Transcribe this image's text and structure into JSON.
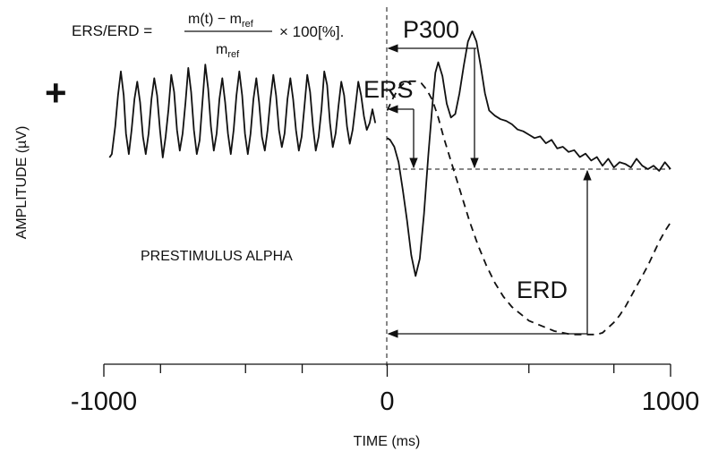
{
  "chart_data": {
    "type": "line",
    "xlabel": "TIME (ms)",
    "ylabel": "AMPLITUDE (µV)",
    "xlim": [
      -1000,
      1000
    ],
    "x_ticks": [
      "-1000",
      "0",
      "1000"
    ],
    "x_minor_ticks": [
      -800,
      -500,
      -300,
      500,
      800
    ],
    "formula": {
      "lhs": "ERS/ERD =",
      "num_main": "m(t) − m",
      "num_sub": "ref",
      "den_main": "m",
      "den_sub": "ref",
      "tail": "× 100[%]."
    },
    "plus_sign": "+",
    "annotations": {
      "p300": "P300",
      "ers": "ERS",
      "erd": "ERD",
      "alpha": "PRESTIMULUS ALPHA"
    },
    "series": [
      {
        "style": "solid",
        "x": [
          -980,
          -972,
          -960,
          -950,
          -940,
          -930,
          -922,
          -912,
          -902,
          -892,
          -882,
          -872,
          -862,
          -852,
          -842,
          -832,
          -822,
          -812,
          -802,
          -792,
          -782,
          -772,
          -762,
          -752,
          -742,
          -732,
          -722,
          -712,
          -702,
          -692,
          -682,
          -672,
          -662,
          -652,
          -642,
          -632,
          -622,
          -612,
          -602,
          -592,
          -582,
          -572,
          -562,
          -552,
          -542,
          -532,
          -522,
          -512,
          -502,
          -492,
          -482,
          -472,
          -462,
          -452,
          -442,
          -432,
          -422,
          -412,
          -402,
          -392,
          -382,
          -372,
          -362,
          -352,
          -342,
          -332,
          -322,
          -312,
          -302,
          -292,
          -282,
          -272,
          -262,
          -252,
          -242,
          -232,
          -222,
          -212,
          -202,
          -192,
          -182,
          -172,
          -162,
          -152,
          -142,
          -132,
          -122,
          -112,
          -102,
          -92,
          -82,
          -72,
          -62,
          -52,
          -42
        ],
        "y": [
          0.0,
          0.1,
          0.9,
          1.8,
          2.5,
          1.8,
          0.7,
          0.1,
          0.8,
          1.7,
          2.2,
          1.6,
          0.6,
          0.1,
          0.7,
          1.7,
          2.3,
          1.8,
          0.8,
          0.0,
          0.6,
          1.4,
          2.4,
          1.9,
          0.8,
          0.2,
          0.7,
          1.6,
          2.6,
          1.9,
          0.8,
          0.1,
          0.5,
          1.6,
          2.7,
          2.0,
          0.9,
          0.2,
          0.7,
          1.7,
          2.3,
          1.6,
          0.7,
          0.1,
          0.8,
          1.8,
          2.5,
          1.8,
          0.7,
          0.1,
          0.7,
          1.7,
          2.3,
          1.6,
          0.6,
          0.2,
          0.8,
          1.7,
          2.4,
          1.8,
          0.8,
          0.3,
          0.7,
          1.7,
          2.3,
          1.7,
          0.8,
          0.2,
          0.6,
          1.5,
          2.4,
          1.9,
          0.9,
          0.2,
          0.6,
          1.4,
          2.5,
          2.1,
          1.0,
          0.3,
          0.7,
          1.5,
          2.2,
          1.8,
          0.9,
          0.4,
          0.8,
          1.5,
          2.2,
          1.8,
          1.2,
          0.8,
          1.0,
          1.4,
          1.0
        ]
      },
      {
        "style": "solid",
        "x": [
          0,
          10,
          25,
          40,
          55,
          70,
          85,
          100,
          115,
          130,
          145,
          160,
          170,
          180,
          195,
          210,
          225,
          240,
          255,
          270,
          285,
          300,
          315,
          330,
          345,
          360,
          380,
          400,
          420,
          440,
          460,
          480,
          500,
          520,
          540,
          560,
          580,
          600,
          620,
          640,
          660,
          680,
          700,
          720,
          740,
          760,
          780,
          800,
          820,
          840,
          860,
          880,
          900,
          920,
          940,
          960,
          980,
          1000
        ],
        "y": [
          0.9,
          0.85,
          0.65,
          0.2,
          -0.6,
          -1.5,
          -2.5,
          -3.1,
          -2.6,
          -1.3,
          0.4,
          1.9,
          2.8,
          3.1,
          2.7,
          1.9,
          1.5,
          1.6,
          2.2,
          3.0,
          3.7,
          4.0,
          3.7,
          3.0,
          2.2,
          1.7,
          1.55,
          1.45,
          1.4,
          1.3,
          1.15,
          1.1,
          1.0,
          0.9,
          0.95,
          0.75,
          0.85,
          0.6,
          0.65,
          0.5,
          0.55,
          0.35,
          0.45,
          0.25,
          0.35,
          0.1,
          0.3,
          0.05,
          0.2,
          0.15,
          0.05,
          0.3,
          0.1,
          0.0,
          0.1,
          -0.05,
          0.2,
          0.0
        ]
      },
      {
        "style": "dashed",
        "x": [
          0,
          20,
          40,
          60,
          80,
          100,
          120,
          140,
          160,
          180,
          200,
          230,
          260,
          290,
          320,
          350,
          380,
          410,
          440,
          470,
          500,
          530,
          560,
          590,
          620,
          650,
          680,
          700,
          720,
          740,
          760,
          780,
          800,
          820,
          840,
          860,
          880,
          900,
          920,
          940,
          960,
          980,
          1000
        ],
        "y": [
          1.7,
          2.05,
          2.35,
          2.5,
          2.55,
          2.55,
          2.5,
          2.3,
          2.0,
          1.5,
          0.9,
          0.1,
          -0.7,
          -1.5,
          -2.2,
          -2.8,
          -3.3,
          -3.7,
          -4.0,
          -4.2,
          -4.4,
          -4.5,
          -4.6,
          -4.7,
          -4.75,
          -4.8,
          -4.8,
          -4.8,
          -4.8,
          -4.8,
          -4.75,
          -4.6,
          -4.45,
          -4.25,
          -4.0,
          -3.7,
          -3.4,
          -3.1,
          -2.8,
          -2.45,
          -2.1,
          -1.8,
          -1.55
        ]
      }
    ]
  }
}
